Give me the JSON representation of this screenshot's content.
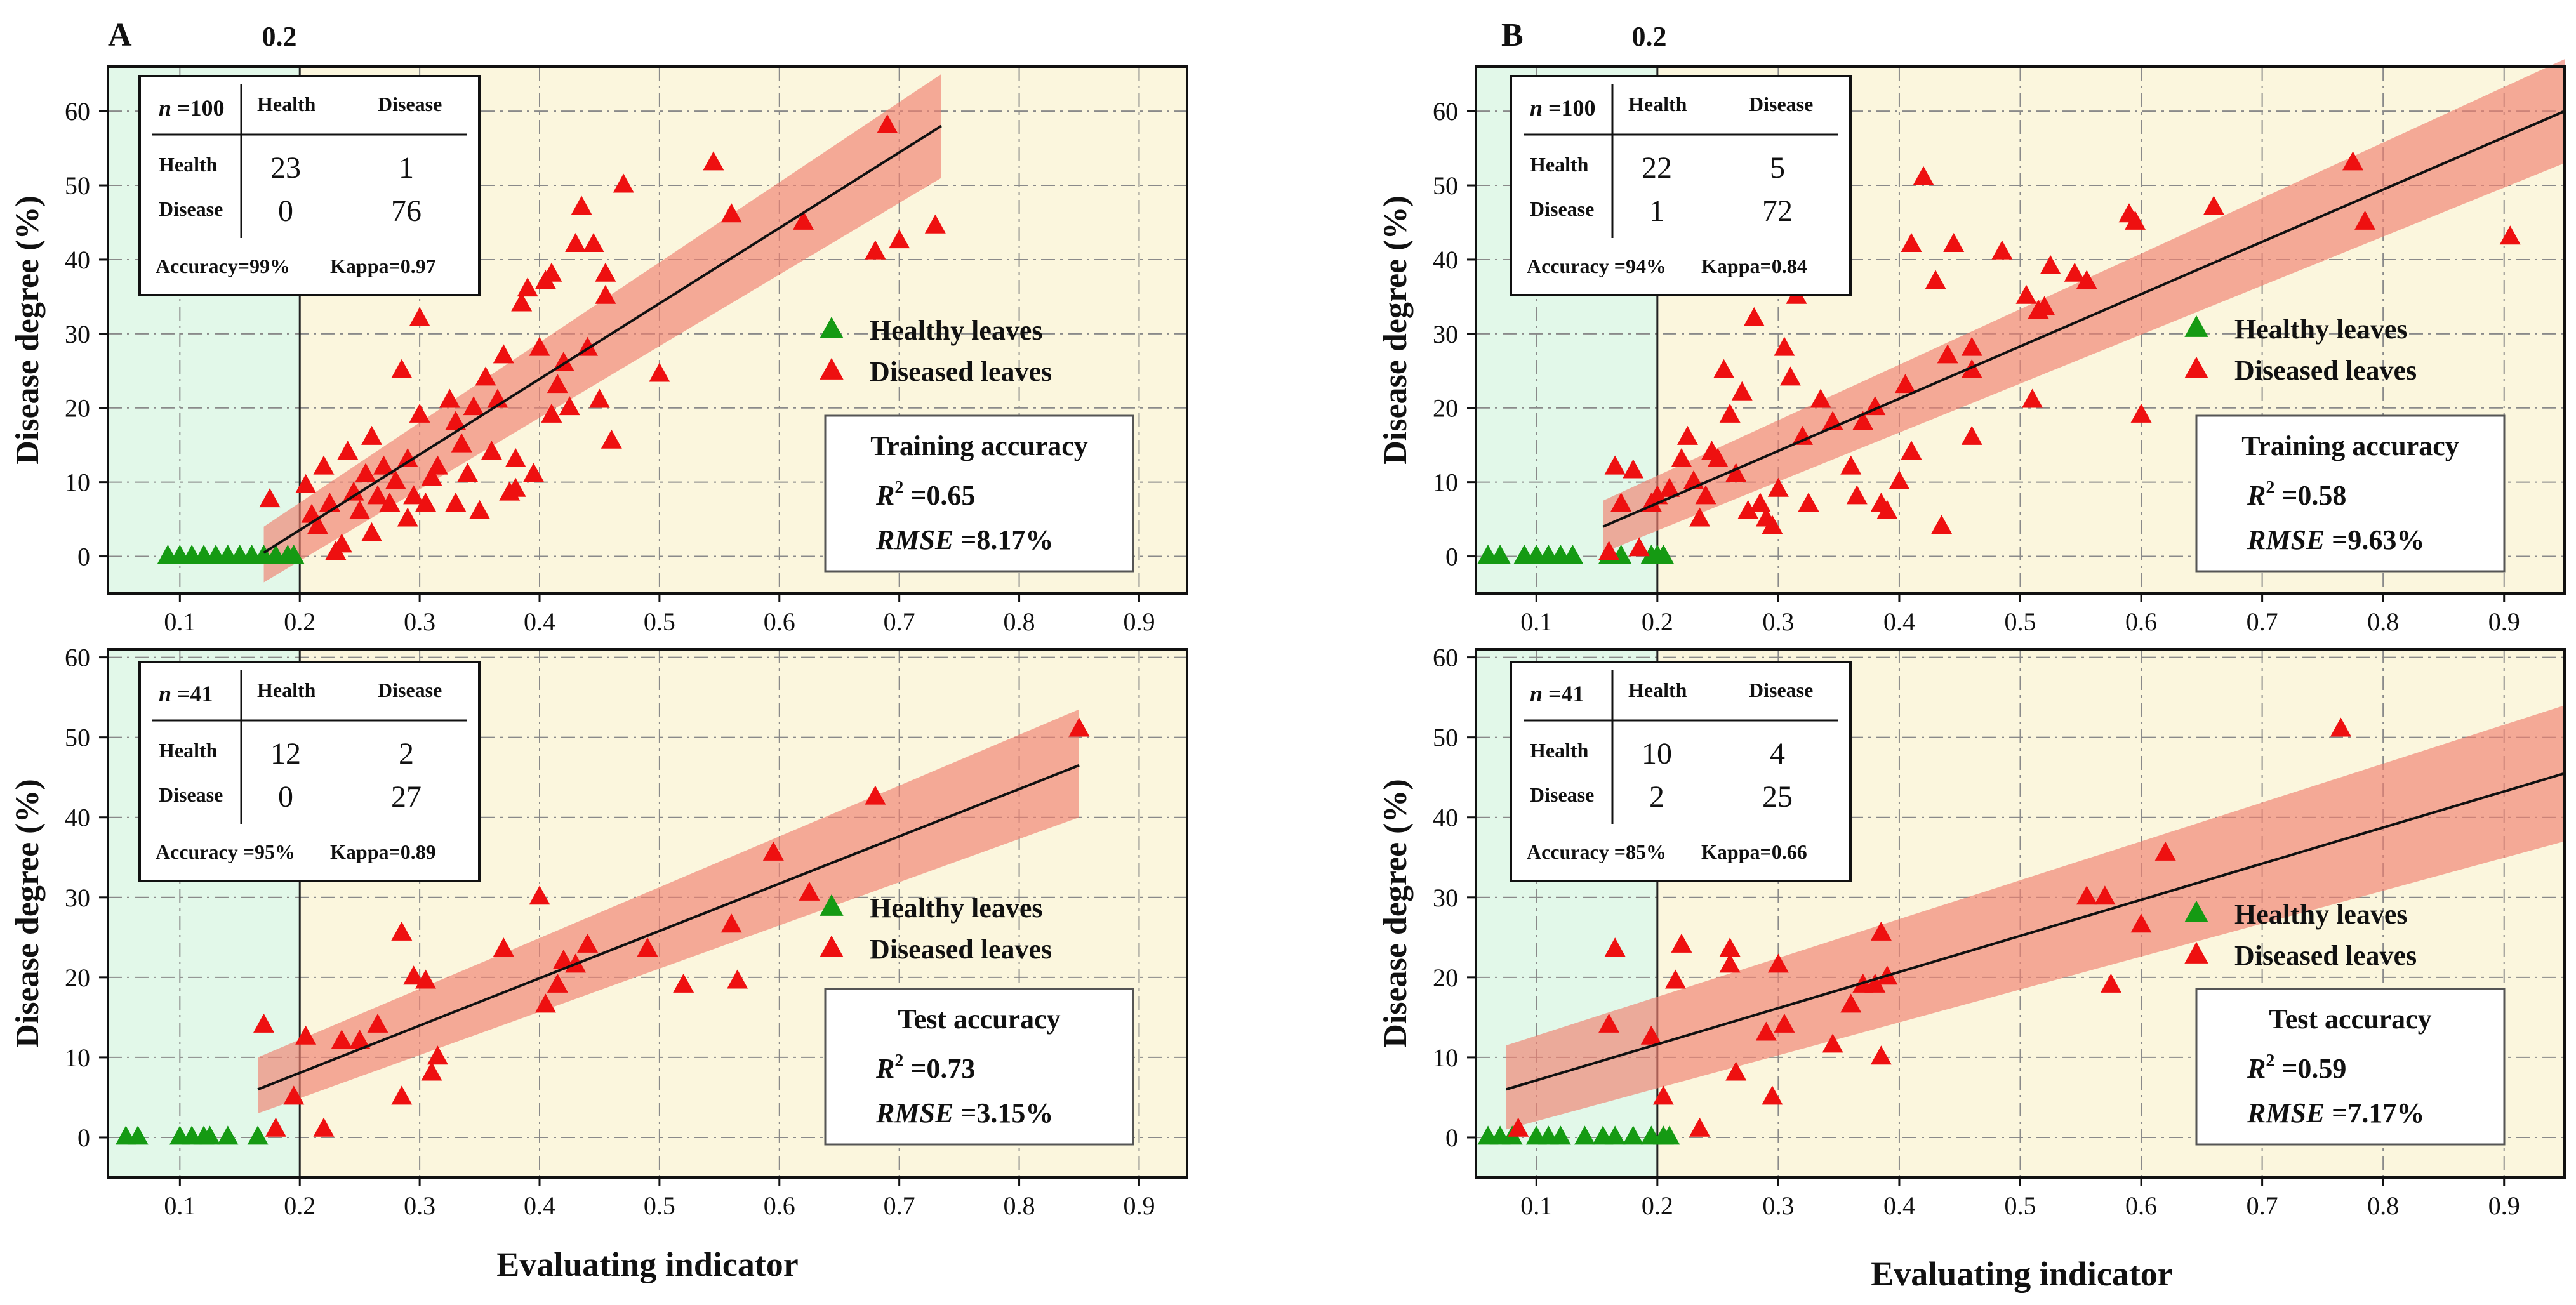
{
  "colors": {
    "healthy_bg": "#e2f8e9",
    "disease_bg": "#fbf6dd",
    "healthy_marker": "#159a13",
    "diseased_marker": "#ee1010",
    "band": "#f08070",
    "line": "#111111"
  },
  "threshold_label": "0.2",
  "chart_data": [
    {
      "id": "A-train",
      "panel_letter": "A",
      "type": "scatter",
      "xlabel": "",
      "ylabel": "Disease degree (%)",
      "xlim": [
        0.04,
        0.94
      ],
      "ylim": [
        -5,
        66
      ],
      "xticks": [
        0.1,
        0.2,
        0.3,
        0.4,
        0.5,
        0.6,
        0.7,
        0.8,
        0.9
      ],
      "yticks": [
        0,
        10,
        20,
        30,
        40,
        50,
        60
      ],
      "threshold": 0.2,
      "fit": {
        "x": [
          0.17,
          0.735
        ],
        "y": [
          0.5,
          58
        ],
        "band_lo": [
          -3.5,
          51
        ],
        "band_hi": [
          4,
          65
        ]
      },
      "confusion": {
        "n": "n",
        "n_value": "=100",
        "col1": "Health",
        "col2": "Disease",
        "row1": "Health",
        "row2": "Disease",
        "c11": "23",
        "c12": "1",
        "c21": "0",
        "c22": "76",
        "accuracy": "Accuracy=99%",
        "kappa": "Kappa=0.97"
      },
      "legend": {
        "healthy": "Healthy leaves",
        "diseased": "Diseased leaves"
      },
      "stats": {
        "title": "Training accuracy",
        "r2_sym": "R",
        "r2_value": "=0.65",
        "rmse_sym": "RMSE",
        "rmse_value": "=8.17%"
      },
      "healthy": [
        [
          0.09,
          0
        ],
        [
          0.1,
          0
        ],
        [
          0.11,
          0
        ],
        [
          0.12,
          0
        ],
        [
          0.13,
          0
        ],
        [
          0.14,
          0
        ],
        [
          0.15,
          0
        ],
        [
          0.16,
          0
        ],
        [
          0.17,
          0
        ],
        [
          0.18,
          0
        ],
        [
          0.19,
          0
        ],
        [
          0.195,
          0
        ]
      ],
      "diseased": [
        [
          0.175,
          7.6
        ],
        [
          0.205,
          9.5
        ],
        [
          0.21,
          5.5
        ],
        [
          0.215,
          4
        ],
        [
          0.22,
          12
        ],
        [
          0.225,
          7
        ],
        [
          0.23,
          0.5
        ],
        [
          0.235,
          1.5
        ],
        [
          0.24,
          14
        ],
        [
          0.245,
          8.5
        ],
        [
          0.25,
          6
        ],
        [
          0.255,
          11
        ],
        [
          0.26,
          16
        ],
        [
          0.26,
          3
        ],
        [
          0.265,
          8
        ],
        [
          0.27,
          12
        ],
        [
          0.275,
          7
        ],
        [
          0.28,
          10
        ],
        [
          0.285,
          25
        ],
        [
          0.29,
          13
        ],
        [
          0.29,
          5
        ],
        [
          0.295,
          8
        ],
        [
          0.3,
          32
        ],
        [
          0.3,
          19
        ],
        [
          0.305,
          7
        ],
        [
          0.31,
          10.5
        ],
        [
          0.315,
          12
        ],
        [
          0.325,
          21
        ],
        [
          0.33,
          18
        ],
        [
          0.33,
          7
        ],
        [
          0.335,
          15
        ],
        [
          0.34,
          11
        ],
        [
          0.345,
          20
        ],
        [
          0.35,
          6
        ],
        [
          0.355,
          24
        ],
        [
          0.36,
          14
        ],
        [
          0.365,
          21
        ],
        [
          0.37,
          27
        ],
        [
          0.375,
          8.5
        ],
        [
          0.38,
          9
        ],
        [
          0.38,
          13
        ],
        [
          0.385,
          34
        ],
        [
          0.39,
          36
        ],
        [
          0.395,
          11
        ],
        [
          0.4,
          28
        ],
        [
          0.405,
          37
        ],
        [
          0.41,
          38
        ],
        [
          0.41,
          19
        ],
        [
          0.415,
          23
        ],
        [
          0.42,
          26
        ],
        [
          0.425,
          20
        ],
        [
          0.43,
          42
        ],
        [
          0.435,
          47
        ],
        [
          0.44,
          28
        ],
        [
          0.445,
          42
        ],
        [
          0.45,
          21
        ],
        [
          0.455,
          38
        ],
        [
          0.455,
          35
        ],
        [
          0.46,
          15.5
        ],
        [
          0.47,
          50
        ],
        [
          0.5,
          24.5
        ],
        [
          0.545,
          53
        ],
        [
          0.56,
          46
        ],
        [
          0.62,
          45
        ],
        [
          0.68,
          41
        ],
        [
          0.69,
          58
        ],
        [
          0.7,
          42.5
        ],
        [
          0.73,
          44.5
        ]
      ]
    },
    {
      "id": "A-test",
      "panel_letter": "",
      "type": "scatter",
      "xlabel": "Evaluating indicator",
      "ylabel": "Disease degree (%)",
      "xlim": [
        0.04,
        0.94
      ],
      "ylim": [
        -5,
        61
      ],
      "xticks": [
        0.1,
        0.2,
        0.3,
        0.4,
        0.5,
        0.6,
        0.7,
        0.8,
        0.9
      ],
      "yticks": [
        0,
        10,
        20,
        30,
        40,
        50,
        60
      ],
      "threshold": 0.2,
      "fit": {
        "x": [
          0.165,
          0.85
        ],
        "y": [
          6,
          46.5
        ],
        "band_lo": [
          3,
          40
        ],
        "band_hi": [
          10,
          53.5
        ]
      },
      "confusion": {
        "n": "n",
        "n_value": "=41",
        "col1": "Health",
        "col2": "Disease",
        "row1": "Health",
        "row2": "Disease",
        "c11": "12",
        "c12": "2",
        "c21": "0",
        "c22": "27",
        "accuracy": "Accuracy =95%",
        "kappa": "Kappa=0.89"
      },
      "legend": {
        "healthy": "Healthy leaves",
        "diseased": "Diseased leaves"
      },
      "stats": {
        "title": "Test accuracy",
        "r2_sym": "R",
        "r2_value": "=0.73",
        "rmse_sym": "RMSE",
        "rmse_value": "=3.15%"
      },
      "healthy": [
        [
          0.055,
          0
        ],
        [
          0.065,
          0
        ],
        [
          0.1,
          0
        ],
        [
          0.11,
          0
        ],
        [
          0.12,
          0
        ],
        [
          0.125,
          0
        ],
        [
          0.14,
          0
        ],
        [
          0.165,
          0
        ]
      ],
      "diseased": [
        [
          0.17,
          14
        ],
        [
          0.18,
          1
        ],
        [
          0.195,
          5
        ],
        [
          0.205,
          12.5
        ],
        [
          0.22,
          1
        ],
        [
          0.235,
          12
        ],
        [
          0.25,
          12
        ],
        [
          0.265,
          14
        ],
        [
          0.285,
          25.5
        ],
        [
          0.285,
          5
        ],
        [
          0.295,
          20
        ],
        [
          0.305,
          19.5
        ],
        [
          0.31,
          8
        ],
        [
          0.315,
          10
        ],
        [
          0.37,
          23.5
        ],
        [
          0.4,
          30
        ],
        [
          0.405,
          16.5
        ],
        [
          0.415,
          19
        ],
        [
          0.42,
          22
        ],
        [
          0.43,
          21.5
        ],
        [
          0.44,
          24
        ],
        [
          0.49,
          23.5
        ],
        [
          0.52,
          19
        ],
        [
          0.56,
          26.5
        ],
        [
          0.565,
          19.5
        ],
        [
          0.595,
          35.5
        ],
        [
          0.625,
          30.5
        ],
        [
          0.68,
          42.5
        ],
        [
          0.85,
          51
        ]
      ]
    },
    {
      "id": "B-train",
      "panel_letter": "B",
      "type": "scatter",
      "xlabel": "",
      "ylabel": "Disease degree (%)",
      "xlim": [
        0.05,
        0.95
      ],
      "ylim": [
        -5,
        66
      ],
      "xticks": [
        0.1,
        0.2,
        0.3,
        0.4,
        0.5,
        0.6,
        0.7,
        0.8,
        0.9
      ],
      "yticks": [
        0,
        10,
        20,
        30,
        40,
        50,
        60
      ],
      "threshold": 0.2,
      "fit": {
        "x": [
          0.155,
          0.95
        ],
        "y": [
          4,
          60
        ],
        "band_lo": [
          0.5,
          53
        ],
        "band_hi": [
          7.5,
          67
        ]
      },
      "confusion": {
        "n": "n",
        "n_value": "=100",
        "col1": "Health",
        "col2": "Disease",
        "row1": "Health",
        "row2": "Disease",
        "c11": "22",
        "c12": "5",
        "c21": "1",
        "c22": "72",
        "accuracy": "Accuracy =94%",
        "kappa": "Kappa=0.84"
      },
      "legend": {
        "healthy": "Healthy leaves",
        "diseased": "Diseased leaves"
      },
      "stats": {
        "title": "Training accuracy",
        "r2_sym": "R",
        "r2_value": "=0.58",
        "rmse_sym": "RMSE",
        "rmse_value": "=9.63%"
      },
      "healthy": [
        [
          0.06,
          0
        ],
        [
          0.07,
          0
        ],
        [
          0.09,
          0
        ],
        [
          0.1,
          0
        ],
        [
          0.11,
          0
        ],
        [
          0.12,
          0
        ],
        [
          0.13,
          0
        ],
        [
          0.16,
          0
        ],
        [
          0.17,
          0
        ],
        [
          0.195,
          0
        ],
        [
          0.2,
          0
        ],
        [
          0.205,
          0
        ]
      ],
      "diseased": [
        [
          0.16,
          0.5
        ],
        [
          0.165,
          12
        ],
        [
          0.17,
          7
        ],
        [
          0.18,
          11.5
        ],
        [
          0.185,
          1
        ],
        [
          0.195,
          7
        ],
        [
          0.2,
          8
        ],
        [
          0.21,
          9
        ],
        [
          0.22,
          13
        ],
        [
          0.225,
          16
        ],
        [
          0.23,
          10
        ],
        [
          0.235,
          5
        ],
        [
          0.24,
          8
        ],
        [
          0.245,
          14
        ],
        [
          0.25,
          13
        ],
        [
          0.255,
          25
        ],
        [
          0.26,
          19
        ],
        [
          0.265,
          11
        ],
        [
          0.27,
          22
        ],
        [
          0.275,
          6
        ],
        [
          0.28,
          32
        ],
        [
          0.285,
          7
        ],
        [
          0.29,
          5
        ],
        [
          0.295,
          4
        ],
        [
          0.3,
          9
        ],
        [
          0.305,
          28
        ],
        [
          0.31,
          24
        ],
        [
          0.315,
          35
        ],
        [
          0.32,
          16
        ],
        [
          0.325,
          7
        ],
        [
          0.335,
          21
        ],
        [
          0.345,
          18
        ],
        [
          0.36,
          12
        ],
        [
          0.365,
          8
        ],
        [
          0.37,
          18
        ],
        [
          0.38,
          20
        ],
        [
          0.385,
          7
        ],
        [
          0.39,
          6
        ],
        [
          0.4,
          10
        ],
        [
          0.405,
          23
        ],
        [
          0.41,
          14
        ],
        [
          0.41,
          42
        ],
        [
          0.42,
          51
        ],
        [
          0.43,
          37
        ],
        [
          0.435,
          4
        ],
        [
          0.44,
          27
        ],
        [
          0.445,
          42
        ],
        [
          0.46,
          28
        ],
        [
          0.46,
          25
        ],
        [
          0.46,
          16
        ],
        [
          0.485,
          41
        ],
        [
          0.505,
          35
        ],
        [
          0.51,
          21
        ],
        [
          0.515,
          33
        ],
        [
          0.52,
          33.5
        ],
        [
          0.525,
          39
        ],
        [
          0.545,
          38
        ],
        [
          0.555,
          37
        ],
        [
          0.59,
          46
        ],
        [
          0.595,
          45
        ],
        [
          0.6,
          19
        ],
        [
          0.66,
          47
        ],
        [
          0.775,
          53
        ],
        [
          0.785,
          45
        ],
        [
          0.905,
          43
        ]
      ]
    },
    {
      "id": "B-test",
      "panel_letter": "",
      "type": "scatter",
      "xlabel": "Evaluating indicator",
      "ylabel": "Disease degree (%)",
      "xlim": [
        0.05,
        0.95
      ],
      "ylim": [
        -5,
        61
      ],
      "xticks": [
        0.1,
        0.2,
        0.3,
        0.4,
        0.5,
        0.6,
        0.7,
        0.8,
        0.9
      ],
      "yticks": [
        0,
        10,
        20,
        30,
        40,
        50,
        60
      ],
      "threshold": 0.2,
      "fit": {
        "x": [
          0.075,
          0.95
        ],
        "y": [
          6,
          45.5
        ],
        "band_lo": [
          1,
          37
        ],
        "band_hi": [
          11.5,
          54
        ]
      },
      "confusion": {
        "n": "n",
        "n_value": "=41",
        "col1": "Health",
        "col2": "Disease",
        "row1": "Health",
        "row2": "Disease",
        "c11": "10",
        "c12": "4",
        "c21": "2",
        "c22": "25",
        "accuracy": "Accuracy =85%",
        "kappa": "Kappa=0.66"
      },
      "legend": {
        "healthy": "Healthy leaves",
        "diseased": "Diseased leaves"
      },
      "stats": {
        "title": "Test accuracy",
        "r2_sym": "R",
        "r2_value": "=0.59",
        "rmse_sym": "RMSE",
        "rmse_value": "=7.17%"
      },
      "healthy": [
        [
          0.06,
          0
        ],
        [
          0.07,
          0
        ],
        [
          0.08,
          0
        ],
        [
          0.1,
          0
        ],
        [
          0.11,
          0
        ],
        [
          0.12,
          0
        ],
        [
          0.14,
          0
        ],
        [
          0.155,
          0
        ],
        [
          0.165,
          0
        ],
        [
          0.18,
          0
        ],
        [
          0.195,
          0
        ],
        [
          0.205,
          0
        ],
        [
          0.21,
          0
        ]
      ],
      "diseased": [
        [
          0.085,
          1
        ],
        [
          0.16,
          14
        ],
        [
          0.165,
          23.5
        ],
        [
          0.195,
          12.5
        ],
        [
          0.205,
          5
        ],
        [
          0.215,
          19.5
        ],
        [
          0.22,
          24
        ],
        [
          0.235,
          1
        ],
        [
          0.26,
          23.5
        ],
        [
          0.26,
          21.5
        ],
        [
          0.265,
          8
        ],
        [
          0.29,
          13
        ],
        [
          0.295,
          5
        ],
        [
          0.3,
          21.5
        ],
        [
          0.305,
          14
        ],
        [
          0.345,
          11.5
        ],
        [
          0.36,
          16.5
        ],
        [
          0.37,
          19
        ],
        [
          0.38,
          19
        ],
        [
          0.385,
          25.5
        ],
        [
          0.385,
          10
        ],
        [
          0.39,
          20
        ],
        [
          0.555,
          30
        ],
        [
          0.57,
          30
        ],
        [
          0.575,
          19
        ],
        [
          0.6,
          26.5
        ],
        [
          0.62,
          35.5
        ],
        [
          0.765,
          51
        ]
      ]
    }
  ]
}
